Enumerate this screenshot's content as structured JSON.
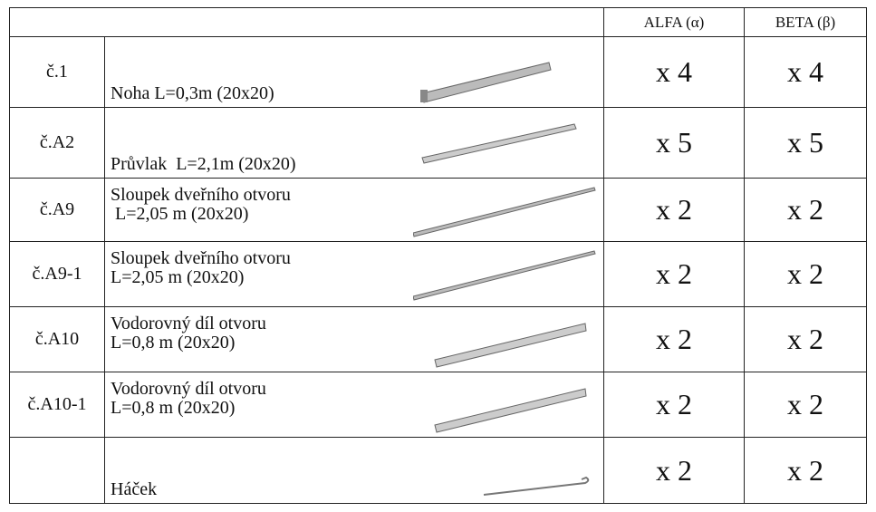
{
  "table": {
    "header": [
      "ALFA (α)",
      "BETA (β)"
    ],
    "rows": [
      {
        "code": "č.1",
        "description": [
          "Noha L=0,3m (20x20)"
        ],
        "alfa": "x 4",
        "beta": "x 4"
      },
      {
        "code": "č.A2",
        "description": [
          "Průvlak  L=2,1m (20x20)"
        ],
        "alfa": "x 5",
        "beta": "x 5"
      },
      {
        "code": "č.A9",
        "description": [
          "Sloupek dveřního otvoru",
          " L=2,05 m (20x20)"
        ],
        "alfa": "x 2",
        "beta": "x 2"
      },
      {
        "code": "č.A9-1",
        "description": [
          "Sloupek dveřního otvoru",
          "L=2,05 m (20x20)"
        ],
        "alfa": "x 2",
        "beta": "x 2"
      },
      {
        "code": "č.A10",
        "description": [
          "Vodorovný díl otvoru",
          "L=0,8 m (20x20)"
        ],
        "alfa": "x 2",
        "beta": "x 2"
      },
      {
        "code": "č.A10-1",
        "description": [
          "Vodorovný díl otvoru",
          "L=0,8 m (20x20)"
        ],
        "alfa": "x 2",
        "beta": "x 2"
      },
      {
        "code": "",
        "description": [
          "Háček"
        ],
        "alfa": "x 2",
        "beta": "x 2"
      }
    ]
  }
}
